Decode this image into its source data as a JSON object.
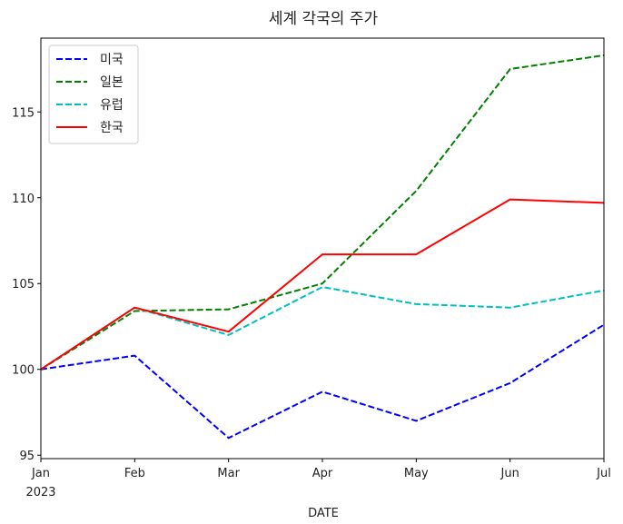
{
  "chart_data": {
    "type": "line",
    "title": "세계 각국의 주가",
    "xlabel": "DATE",
    "ylabel": "",
    "x": [
      "Jan",
      "Feb",
      "Mar",
      "Apr",
      "May",
      "Jun",
      "Jul"
    ],
    "x_tick_labels": [
      "Jan",
      "Feb",
      "Mar",
      "Apr",
      "May",
      "Jun",
      "Jul"
    ],
    "x_year_label": "2023",
    "ylim": [
      94.8,
      119.3
    ],
    "y_ticks": [
      95,
      100,
      105,
      110,
      115
    ],
    "y_tick_labels": [
      "95",
      "100",
      "105",
      "110",
      "115"
    ],
    "grid": false,
    "legend_position": "top-left",
    "series": [
      {
        "name": "미국",
        "color": "#0000ff",
        "style": "dashed",
        "values": [
          100.0,
          100.8,
          96.0,
          98.7,
          97.0,
          99.2,
          102.6
        ]
      },
      {
        "name": "일본",
        "color": "#008000",
        "style": "dashed",
        "values": [
          100.0,
          103.4,
          103.5,
          105.0,
          110.4,
          117.5,
          118.3
        ]
      },
      {
        "name": "유럽",
        "color": "#00bfbf",
        "style": "dashed",
        "values": [
          100.0,
          103.6,
          102.0,
          104.8,
          103.8,
          103.6,
          104.6
        ]
      },
      {
        "name": "한국",
        "color": "#ff0000",
        "style": "solid",
        "values": [
          100.0,
          103.6,
          102.2,
          106.7,
          106.7,
          109.9,
          109.7
        ]
      }
    ]
  }
}
